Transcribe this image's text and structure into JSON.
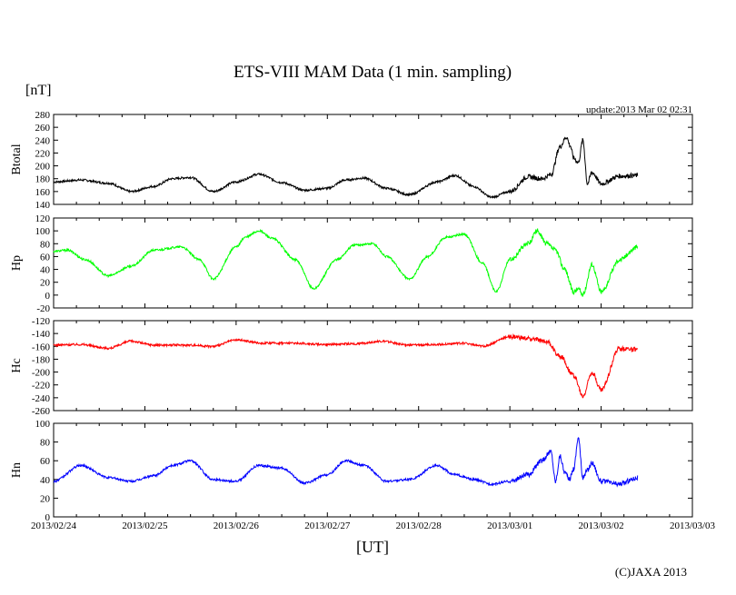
{
  "chart_data": {
    "type": "line",
    "title": "ETS-VIII MAM Data (1 min. sampling)",
    "unit": "[nT]",
    "update": "update:2013 Mar 02 02:31",
    "xlabel": "[UT]",
    "copyright": "(C)JAXA 2013",
    "x_range_days": [
      0,
      7
    ],
    "x_tick_labels": [
      "2013/02/24",
      "2013/02/25",
      "2013/02/26",
      "2013/02/27",
      "2013/02/28",
      "2013/03/01",
      "2013/03/02",
      "2013/03/03"
    ],
    "panels": [
      {
        "name": "Btotal",
        "color": "#000000",
        "ylim": [
          140,
          280
        ],
        "yticks": [
          140,
          160,
          180,
          200,
          220,
          240,
          260,
          280
        ],
        "x": [
          0,
          0.3,
          0.6,
          0.85,
          1.1,
          1.3,
          1.5,
          1.75,
          2.0,
          2.25,
          2.5,
          2.75,
          3.0,
          3.2,
          3.4,
          3.65,
          3.9,
          4.2,
          4.4,
          4.6,
          4.8,
          5.0,
          5.2,
          5.35,
          5.45,
          5.55,
          5.62,
          5.66,
          5.7,
          5.75,
          5.8,
          5.85,
          5.9,
          6.0,
          6.2,
          6.4
        ],
        "values": [
          175,
          178,
          173,
          160,
          168,
          180,
          182,
          160,
          175,
          187,
          174,
          162,
          165,
          178,
          181,
          165,
          155,
          175,
          185,
          168,
          151,
          160,
          183,
          180,
          186,
          230,
          245,
          232,
          212,
          205,
          240,
          172,
          190,
          172,
          184,
          185
        ]
      },
      {
        "name": "Hp",
        "color": "#00ff00",
        "ylim": [
          -20,
          120
        ],
        "yticks": [
          -20,
          0,
          20,
          40,
          60,
          80,
          100,
          120
        ],
        "x": [
          0,
          0.15,
          0.35,
          0.6,
          0.85,
          1.1,
          1.4,
          1.6,
          1.75,
          2.0,
          2.1,
          2.25,
          2.4,
          2.65,
          2.85,
          3.1,
          3.3,
          3.5,
          3.65,
          3.9,
          4.1,
          4.3,
          4.5,
          4.7,
          4.85,
          5.0,
          5.2,
          5.3,
          5.4,
          5.5,
          5.6,
          5.7,
          5.75,
          5.8,
          5.9,
          6.0,
          6.2,
          6.4
        ],
        "values": [
          68,
          70,
          55,
          30,
          45,
          70,
          75,
          55,
          25,
          75,
          90,
          100,
          88,
          55,
          10,
          55,
          78,
          80,
          60,
          25,
          60,
          90,
          95,
          50,
          5,
          55,
          80,
          100,
          80,
          70,
          40,
          5,
          10,
          0,
          48,
          5,
          55,
          75
        ]
      },
      {
        "name": "Hc",
        "color": "#ff0000",
        "ylim": [
          -260,
          -120
        ],
        "yticks": [
          -260,
          -240,
          -220,
          -200,
          -180,
          -160,
          -140,
          -120
        ],
        "x": [
          0,
          0.3,
          0.6,
          0.85,
          1.1,
          1.5,
          1.75,
          2.0,
          2.3,
          2.6,
          3.0,
          3.3,
          3.6,
          3.9,
          4.2,
          4.5,
          4.7,
          5.0,
          5.2,
          5.4,
          5.55,
          5.7,
          5.8,
          5.9,
          6.0,
          6.2,
          6.4
        ],
        "values": [
          -158,
          -157,
          -163,
          -152,
          -158,
          -158,
          -160,
          -150,
          -155,
          -155,
          -157,
          -156,
          -152,
          -158,
          -157,
          -155,
          -160,
          -145,
          -148,
          -152,
          -175,
          -205,
          -238,
          -200,
          -228,
          -163,
          -165
        ]
      },
      {
        "name": "Hn",
        "color": "#0000ff",
        "ylim": [
          0,
          100
        ],
        "yticks": [
          0,
          20,
          40,
          60,
          80,
          100
        ],
        "x": [
          0,
          0.3,
          0.6,
          0.85,
          1.1,
          1.3,
          1.5,
          1.75,
          2.0,
          2.25,
          2.5,
          2.75,
          3.0,
          3.2,
          3.4,
          3.65,
          3.9,
          4.2,
          4.4,
          4.6,
          4.8,
          5.0,
          5.2,
          5.35,
          5.45,
          5.5,
          5.55,
          5.6,
          5.65,
          5.7,
          5.75,
          5.8,
          5.85,
          5.9,
          6.0,
          6.2,
          6.4
        ],
        "values": [
          38,
          55,
          42,
          38,
          44,
          55,
          60,
          40,
          38,
          55,
          52,
          36,
          45,
          60,
          55,
          38,
          40,
          55,
          45,
          40,
          35,
          38,
          45,
          60,
          70,
          38,
          65,
          48,
          40,
          52,
          85,
          42,
          50,
          58,
          38,
          35,
          42
        ]
      }
    ]
  }
}
